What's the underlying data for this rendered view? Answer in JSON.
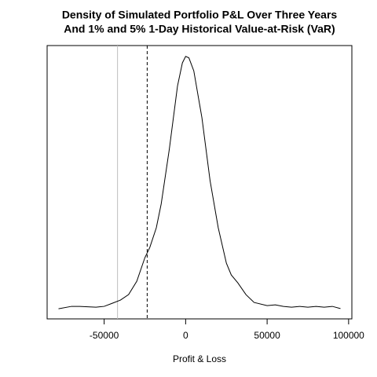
{
  "chart_data": {
    "type": "line",
    "title": [
      "Density of Simulated Portfolio P&L Over Three Years",
      "And 1% and 5% 1-Day Historical Value-at-Risk (VaR)"
    ],
    "x_label": "Profit & Loss",
    "x": [
      -78000,
      -70000,
      -65000,
      -60000,
      -55000,
      -50000,
      -45000,
      -40000,
      -35000,
      -30000,
      -25000,
      -22000,
      -18000,
      -15000,
      -10000,
      -5000,
      -2000,
      0,
      2000,
      5000,
      10000,
      15000,
      20000,
      25000,
      28000,
      32000,
      37000,
      42000,
      50000,
      55000,
      60000,
      65000,
      70000,
      75000,
      80000,
      85000,
      90000,
      95000
    ],
    "series": [
      {
        "color": "#000000",
        "values": [
          0.0,
          3.3e-07,
          3.3e-07,
          2.7e-07,
          2.2e-07,
          3.3e-07,
          7.6e-07,
          1.2e-06,
          1.96e-06,
          3.8e-06,
          7.07e-06,
          8.48e-06,
          1.12e-05,
          1.45e-05,
          2.21e-05,
          3.08e-05,
          3.4e-05,
          3.49e-05,
          3.47e-05,
          3.29e-05,
          2.64e-05,
          1.77e-05,
          1.12e-05,
          6.3e-06,
          4.67e-06,
          3.59e-06,
          1.96e-06,
          8.7e-07,
          4.3e-07,
          5.4e-07,
          3.3e-07,
          2.2e-07,
          3.3e-07,
          2.2e-07,
          3.3e-07,
          2.2e-07,
          3.3e-07,
          3e-08
        ]
      }
    ],
    "vlines": [
      {
        "x": -41800,
        "color": "#bebebe",
        "style": "solid"
      },
      {
        "x": -23600,
        "color": "#000000",
        "style": "dashed"
      }
    ],
    "xlim": [
      -85000,
      102000
    ],
    "ylim": [
      -1.4e-06,
      3.64e-05
    ],
    "xticks": [
      -50000,
      0,
      50000,
      100000
    ]
  }
}
